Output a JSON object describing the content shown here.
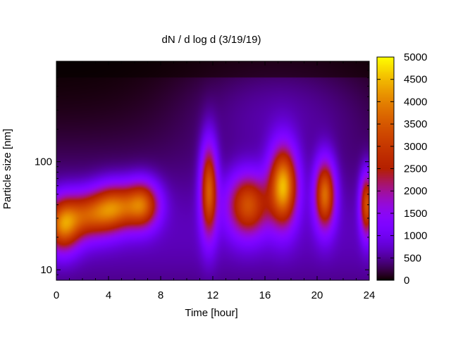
{
  "chart_data": {
    "type": "heatmap",
    "title": "dN / d log d (3/19/19)",
    "xlabel": "Time [hour]",
    "ylabel": "Particle size [nm]",
    "xlim": [
      0,
      24
    ],
    "x_ticks": [
      0,
      4,
      8,
      12,
      16,
      20,
      24
    ],
    "x_tick_labels": [
      "0",
      "4",
      "8",
      "12",
      "16",
      "20",
      "24"
    ],
    "y_scale": "log",
    "ylim": [
      8,
      850
    ],
    "y_tick_labels_shown": [
      "10",
      "100"
    ],
    "y_ticks": [
      10,
      100
    ],
    "colorbar": {
      "range": [
        0,
        5000
      ],
      "ticks": [
        0,
        500,
        1000,
        1500,
        2000,
        2500,
        3000,
        3500,
        4000,
        4500,
        5000
      ],
      "tick_labels": [
        "0",
        "500",
        "1000",
        "1500",
        "2000",
        "2500",
        "3000",
        "3500",
        "4000",
        "4500",
        "5000"
      ],
      "colormap": "gnuplot (black-purple-red-orange-yellow)"
    },
    "grid": false,
    "modes": [
      {
        "center_hour": 0.5,
        "width_hour": 0.9,
        "diameter_nm": 26,
        "log_sigma": 0.17,
        "amplitude": 3000
      },
      {
        "center_hour": 2.5,
        "width_hour": 1.3,
        "diameter_nm": 32,
        "log_sigma": 0.15,
        "amplitude": 2400
      },
      {
        "center_hour": 4.5,
        "width_hour": 1.1,
        "diameter_nm": 38,
        "log_sigma": 0.15,
        "amplitude": 2700
      },
      {
        "center_hour": 6.6,
        "width_hour": 0.9,
        "diameter_nm": 40,
        "log_sigma": 0.15,
        "amplitude": 2900
      },
      {
        "center_hour": 11.7,
        "width_hour": 0.45,
        "diameter_nm": 55,
        "log_sigma": 0.3,
        "amplitude": 3000
      },
      {
        "center_hour": 14.7,
        "width_hour": 1.1,
        "diameter_nm": 40,
        "log_sigma": 0.2,
        "amplitude": 2800
      },
      {
        "center_hour": 17.4,
        "width_hour": 0.75,
        "diameter_nm": 60,
        "log_sigma": 0.25,
        "amplitude": 3900
      },
      {
        "center_hour": 20.6,
        "width_hour": 0.55,
        "diameter_nm": 50,
        "log_sigma": 0.22,
        "amplitude": 3200
      },
      {
        "center_hour": 23.8,
        "width_hour": 0.35,
        "diameter_nm": 40,
        "log_sigma": 0.2,
        "amplitude": 2800
      }
    ]
  }
}
